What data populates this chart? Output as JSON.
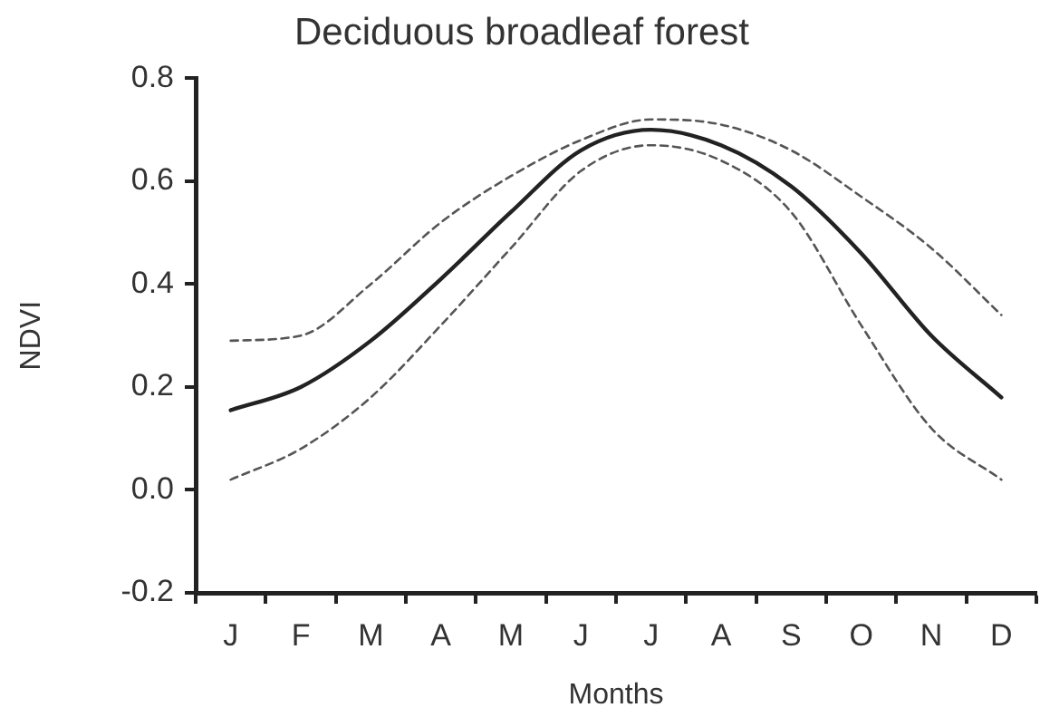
{
  "chart_data": {
    "type": "line",
    "title": "Deciduous broadleaf forest",
    "xlabel": "Months",
    "ylabel": "NDVI",
    "categories": [
      "J",
      "F",
      "M",
      "A",
      "M",
      "J",
      "J",
      "A",
      "S",
      "O",
      "N",
      "D"
    ],
    "ylim": [
      -0.2,
      0.8
    ],
    "yticks": [
      -0.2,
      {
        "value": 0,
        "label": "0.0"
      },
      0.2,
      0.4,
      0.6,
      0.8
    ],
    "grid": false,
    "legend": false,
    "marker": "none",
    "series": [
      {
        "color": "#222222",
        "line_style": "solid",
        "values": [
          0.155,
          0.2,
          0.29,
          0.41,
          0.54,
          0.66,
          0.7,
          0.67,
          0.59,
          0.46,
          0.3,
          0.18
        ]
      },
      {
        "color": "#555555",
        "line_style": "dashed",
        "values": [
          0.29,
          0.3,
          0.4,
          0.52,
          0.61,
          0.68,
          0.72,
          0.71,
          0.66,
          0.57,
          0.47,
          0.34
        ]
      },
      {
        "color": "#555555",
        "line_style": "dashed",
        "values": [
          0.02,
          0.08,
          0.18,
          0.32,
          0.47,
          0.62,
          0.67,
          0.64,
          0.54,
          0.32,
          0.12,
          0.02
        ]
      }
    ]
  }
}
